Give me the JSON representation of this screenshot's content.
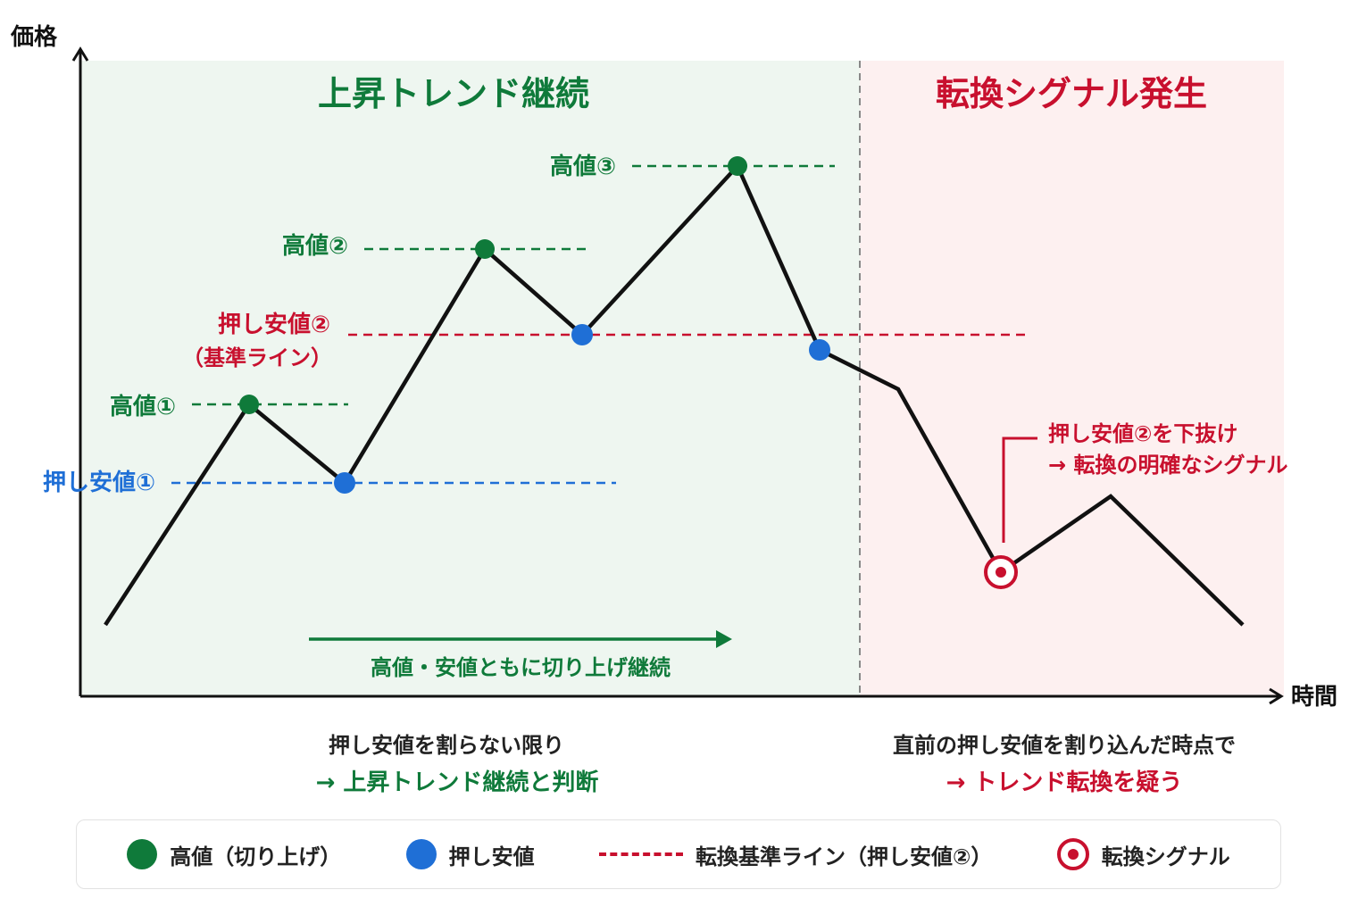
{
  "axes": {
    "y_label": "価格",
    "x_label": "時間"
  },
  "zones": {
    "uptrend_title": "上昇トレンド継続",
    "reversal_title": "転換シグナル発生",
    "uptrend_bg": "#eef6f0",
    "reversal_bg": "#fdf0f0"
  },
  "labels": {
    "high1": "高値①",
    "high2": "高値②",
    "high3": "高値③",
    "low1": "押し安値①",
    "low2_line1": "押し安値②",
    "low2_line2": "（基準ライン）",
    "trend_arrow": "高値・安値ともに切り上げ継続",
    "breakout_line1": "押し安値②を下抜け",
    "breakout_line2": "→ 転換の明確なシグナル"
  },
  "notes": {
    "left_line1": "押し安値を割らない限り",
    "left_line2": "→ 上昇トレンド継続と判断",
    "right_line1": "直前の押し安値を割り込んだ時点で",
    "right_line2": "→ トレンド転換を疑う"
  },
  "legend": {
    "high": "高値（切り上げ）",
    "low": "押し安値",
    "line": "転換基準ライン（押し安値②）",
    "signal": "転換シグナル"
  },
  "colors": {
    "green": "#0f7a3a",
    "blue": "#1f6fd6",
    "red": "#c8102e",
    "line": "#111111",
    "axis": "#111111",
    "divider": "#888888"
  }
}
